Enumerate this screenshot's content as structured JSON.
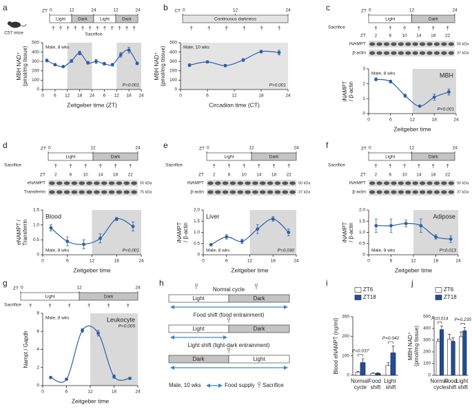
{
  "chart_data": [
    {
      "type": "line",
      "label": "a",
      "icon_label": "C57 mice",
      "timeline": {
        "prefix": "ZT",
        "ticks": [
          0,
          12,
          24,
          {
            "value": 36,
            "label": "12"
          },
          {
            "value": 48,
            "label": "24"
          }
        ],
        "phases": [
          {
            "name": "Light",
            "from": 0,
            "to": 12,
            "color": "#ffffff"
          },
          {
            "name": "Dark",
            "from": 12,
            "to": 24,
            "color": "#c4c4c4"
          },
          {
            "name": "Light",
            "from": 24,
            "to": 36,
            "color": "#ffffff"
          },
          {
            "name": "Dark",
            "from": 36,
            "to": 48,
            "color": "#c4c4c4"
          }
        ],
        "sacrifice": "Sacrifice"
      },
      "x": [
        2,
        6,
        10,
        14,
        18,
        22,
        26,
        30,
        34,
        38,
        42,
        46
      ],
      "values": [
        310,
        265,
        245,
        305,
        390,
        285,
        300,
        275,
        265,
        370,
        420,
        280
      ],
      "errors": [
        15,
        10,
        10,
        15,
        20,
        15,
        20,
        15,
        15,
        25,
        30,
        15
      ],
      "xlim": [
        0,
        48
      ],
      "xticks": [
        0,
        6,
        12,
        18,
        24,
        {
          "value": 30,
          "label": "6"
        },
        {
          "value": 36,
          "label": "12"
        },
        {
          "value": 42,
          "label": "18"
        },
        {
          "value": 48,
          "label": "24"
        }
      ],
      "ylim": [
        0,
        500
      ],
      "yticks": [
        0,
        100,
        200,
        300,
        400,
        500
      ],
      "xlabel": "Zeitgeber time (ZT)",
      "ylabel": [
        "MBH NAD⁺",
        "(pmol/mg tissue)"
      ],
      "shaded": [
        [
          12,
          24
        ],
        [
          36,
          48
        ]
      ],
      "shade_color": "#d9d9d9",
      "color": "#2b5fa8",
      "note": "Male, 8 wks",
      "p_value": "P=0.001"
    },
    {
      "type": "line",
      "label": "b",
      "timeline": {
        "prefix": "CT",
        "ticks": [
          0,
          12,
          24
        ],
        "phases": [
          {
            "name": "Continuous darkness",
            "from": 0,
            "to": 24,
            "color": "#e4e4e4"
          }
        ]
      },
      "x": [
        2,
        6,
        10,
        14,
        18,
        22
      ],
      "values": [
        260,
        295,
        255,
        315,
        405,
        395
      ],
      "errors": [
        15,
        10,
        12,
        15,
        15,
        25
      ],
      "xlim": [
        0,
        24
      ],
      "xticks": [
        0,
        6,
        12,
        18,
        24
      ],
      "ylim": [
        0,
        500
      ],
      "yticks": [
        0,
        100,
        200,
        300,
        400,
        500
      ],
      "xlabel": "Circadian time (CT)",
      "ylabel": [
        "MBH NAD⁺",
        "(pmol/mg tissue)"
      ],
      "shaded": [
        [
          0,
          24
        ]
      ],
      "shade_color": "#e4e4e4",
      "color": "#2b5fa8",
      "note": "Male, 10 wks",
      "p_value": "P=0.001"
    },
    {
      "type": "line",
      "label": "c",
      "timeline": {
        "prefix": "ZT",
        "ticks": [
          0,
          12,
          24
        ],
        "phases": [
          {
            "name": "Light",
            "from": 0,
            "to": 12,
            "color": "#ffffff"
          },
          {
            "name": "Dark",
            "from": 12,
            "to": 24,
            "color": "#c4c4c4"
          }
        ],
        "sacrifice": "Sacrifice"
      },
      "blot": {
        "lane_label": "ZT",
        "bands": [
          {
            "name": "iNAMPT",
            "size": "50 kDa"
          },
          {
            "name": "β-actin",
            "size": "37 kDa"
          }
        ]
      },
      "x": [
        2,
        6,
        10,
        14,
        18,
        22
      ],
      "values": [
        2.3,
        2.15,
        1.2,
        0.5,
        1.1,
        1.45
      ],
      "errors": [
        0.1,
        0.1,
        0.1,
        0.05,
        0.2,
        0.2
      ],
      "xlim": [
        0,
        24
      ],
      "xticks": [
        0,
        6,
        12,
        18,
        24
      ],
      "ylim": [
        0,
        3
      ],
      "yticks": [
        0,
        1,
        2,
        3
      ],
      "xlabel": "Zeitgeber time",
      "ylabel": [
        "iNAMPT",
        "/ β-actin"
      ],
      "shaded": [
        [
          12,
          24
        ]
      ],
      "shade_color": "#d9d9d9",
      "color": "#2b5fa8",
      "note": "Male, 8 wks",
      "tag": "MBH",
      "p_value": "P<0.001"
    },
    {
      "type": "line",
      "label": "d",
      "timeline": {
        "prefix": "ZT",
        "ticks": [
          0,
          12,
          24
        ],
        "phases": [
          {
            "name": "Light",
            "from": 0,
            "to": 12,
            "color": "#ffffff"
          },
          {
            "name": "Dark",
            "from": 12,
            "to": 24,
            "color": "#c4c4c4"
          }
        ],
        "sacrifice": "Sacrifice"
      },
      "blot": {
        "lane_label": "ZT",
        "bands": [
          {
            "name": "eNAMPT",
            "size": "50 kDa"
          },
          {
            "name": "Transferrin",
            "size": "75 kDa"
          }
        ]
      },
      "x": [
        2,
        6,
        10,
        14,
        18,
        22
      ],
      "values": [
        0.9,
        0.45,
        0.35,
        0.55,
        1.2,
        0.95
      ],
      "errors": [
        0.1,
        0.15,
        0.15,
        0.15,
        0.05,
        0.15
      ],
      "xlim": [
        0,
        24
      ],
      "xticks": [
        0,
        6,
        12,
        18,
        24
      ],
      "ylim": [
        0,
        1.5
      ],
      "yticks": [
        0,
        0.5,
        {
          "value": 1,
          "label": "1.0"
        },
        1.5
      ],
      "xlabel": "Zeitgeber time",
      "ylabel": [
        "eNAMPT /",
        "Transferrin"
      ],
      "shaded": [
        [
          12,
          24
        ]
      ],
      "shade_color": "#d9d9d9",
      "color": "#2b5fa8",
      "note": "Male, 8 wks",
      "tag": "Blood",
      "p_value": "P<0.001"
    },
    {
      "type": "line",
      "label": "e",
      "timeline": {
        "prefix": "ZT",
        "ticks": [
          0,
          12,
          24
        ],
        "phases": [
          {
            "name": "Light",
            "from": 0,
            "to": 12,
            "color": "#ffffff"
          },
          {
            "name": "Dark",
            "from": 12,
            "to": 24,
            "color": "#c4c4c4"
          }
        ],
        "sacrifice": "Sacrifice"
      },
      "blot": {
        "lane_label": "ZT",
        "bands": [
          {
            "name": "iNAMPT",
            "size": "50 kDa"
          },
          {
            "name": "β-actin",
            "size": "37 kDa"
          }
        ]
      },
      "x": [
        2,
        6,
        10,
        14,
        18,
        22
      ],
      "values": [
        0.45,
        0.8,
        0.6,
        1.15,
        1.6,
        1.0
      ],
      "errors": [
        0.05,
        0.1,
        0.1,
        0.2,
        0.1,
        0.15
      ],
      "xlim": [
        0,
        24
      ],
      "xticks": [
        0,
        6,
        12,
        18,
        24
      ],
      "ylim": [
        0,
        2
      ],
      "yticks": [
        0,
        0.5,
        {
          "value": 1,
          "label": "1.0"
        },
        1.5,
        {
          "value": 2,
          "label": "2.0"
        }
      ],
      "xlabel": "Zeitgeber time",
      "ylabel": [
        "iNAMPT",
        "/ β-actin"
      ],
      "shaded": [
        [
          12,
          24
        ]
      ],
      "shade_color": "#d9d9d9",
      "color": "#2b5fa8",
      "note": "Male, 8 wks",
      "tag": "Liver",
      "p_value": "P=0.030"
    },
    {
      "type": "line",
      "label": "f",
      "timeline": {
        "prefix": "ZT",
        "ticks": [
          0,
          12,
          24
        ],
        "phases": [
          {
            "name": "Light",
            "from": 0,
            "to": 12,
            "color": "#ffffff"
          },
          {
            "name": "Dark",
            "from": 12,
            "to": 24,
            "color": "#c4c4c4"
          }
        ],
        "sacrifice": "Sacrifice"
      },
      "blot": {
        "lane_label": "ZT",
        "bands": [
          {
            "name": "iNAMPT",
            "size": "50 kDa"
          },
          {
            "name": "β-actin",
            "size": "37 kDa"
          }
        ]
      },
      "x": [
        2,
        6,
        10,
        14,
        18,
        22
      ],
      "values": [
        1.3,
        1.3,
        1.4,
        1.3,
        0.8,
        0.7
      ],
      "errors": [
        0.3,
        0.3,
        0.15,
        0.3,
        0.1,
        0.15
      ],
      "xlim": [
        0,
        24
      ],
      "xticks": [
        0,
        6,
        12,
        18,
        24
      ],
      "ylim": [
        0,
        2
      ],
      "yticks": [
        0,
        0.5,
        {
          "value": 1,
          "label": "1.0"
        },
        1.5,
        {
          "value": 2,
          "label": "2.0"
        }
      ],
      "xlabel": "Zeitgeber time",
      "ylabel": [
        "iNAMPT",
        "/ β-actin"
      ],
      "shaded": [
        [
          12,
          24
        ]
      ],
      "shade_color": "#d9d9d9",
      "color": "#2b5fa8",
      "note": "Male, 8 wks",
      "tag": "Adipose",
      "p_value": "P=0.013"
    },
    {
      "type": "line",
      "label": "g",
      "timeline": {
        "prefix": "ZT",
        "ticks": [
          0,
          12,
          24
        ],
        "phases": [
          {
            "name": "Light",
            "from": 0,
            "to": 12,
            "color": "#ffffff"
          },
          {
            "name": "Dark",
            "from": 12,
            "to": 24,
            "color": "#c4c4c4"
          }
        ],
        "sacrifice": "Sacrifice"
      },
      "x": [
        2,
        6,
        10,
        14,
        18,
        22
      ],
      "values": [
        0.9,
        0.7,
        6.1,
        5.8,
        1.0,
        0.8
      ],
      "errors": [
        0.1,
        0.1,
        0.2,
        0.3,
        0.2,
        0.1
      ],
      "xlim": [
        0,
        24
      ],
      "xticks": [
        0,
        6,
        12,
        18,
        24
      ],
      "ylim": [
        0,
        8
      ],
      "yticks": [
        0,
        2,
        4,
        6,
        8
      ],
      "xlabel": "Zeitgeber time",
      "ylabel": [
        "Nampt / Gapdh"
      ],
      "shaded": [
        [
          12,
          24
        ]
      ],
      "shade_color": "#d9d9d9",
      "color": "#2b5fa8",
      "note": "Male, 8 wks",
      "tag": "Leukocyte",
      "p_value": "P=0.005"
    },
    {
      "type": "bar",
      "label": "i",
      "categories": [
        "Normal cycle",
        "Food shift",
        "Light shift"
      ],
      "series": [
        {
          "name": "ZT6",
          "color": "#ffffff",
          "values": [
            15,
            10,
            50
          ],
          "errors": [
            5,
            3,
            15
          ]
        },
        {
          "name": "ZT18",
          "color": "#1f4e9c",
          "values": [
            65,
            10,
            115
          ],
          "errors": [
            20,
            3,
            35
          ]
        }
      ],
      "ylim": [
        0,
        300
      ],
      "yticks": [
        0,
        100,
        200,
        300
      ],
      "ylabel": [
        "Blood eNAMPT (ng/ml)"
      ],
      "p_values": [
        "P=0.037",
        null,
        "P=0.042"
      ]
    },
    {
      "type": "bar",
      "label": "j",
      "categories": [
        "Normal cycle",
        "Food shift",
        "Light shift"
      ],
      "series": [
        {
          "name": "ZT6",
          "color": "#ffffff",
          "values": [
            290,
            310,
            330
          ],
          "errors": [
            20,
            40,
            40
          ]
        },
        {
          "name": "ZT18",
          "color": "#1f4e9c",
          "values": [
            390,
            290,
            380
          ],
          "errors": [
            30,
            30,
            30
          ]
        }
      ],
      "ylim": [
        0,
        500
      ],
      "yticks": [
        0,
        100,
        200,
        300,
        400,
        500
      ],
      "ylabel": [
        "MBH NAD⁺",
        "(pmol/mg tissue)"
      ],
      "p_values": [
        "P=0.014",
        null,
        "P=0.235"
      ]
    }
  ],
  "schedule": {
    "label": "h",
    "rows": [
      {
        "title": "Normal cycle",
        "phases": [
          "Light",
          "Dark"
        ]
      },
      {
        "title": "Food shift (food entrainment)",
        "phases": [
          "Light",
          "Dark"
        ]
      },
      {
        "title": "Light shift (light-dark entrainment)",
        "phases": [
          "Dark",
          "Light"
        ]
      }
    ],
    "note": "Male, 10 wks",
    "legend": [
      "Food supply",
      "Sacrifice"
    ]
  }
}
